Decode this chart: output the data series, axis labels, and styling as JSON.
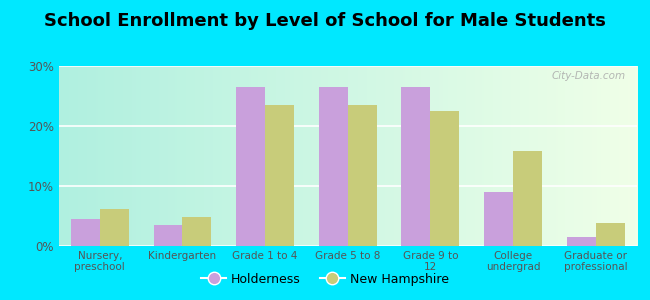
{
  "title": "School Enrollment by Level of School for Male Students",
  "categories": [
    "Nursery,\npreschool",
    "Kindergarten",
    "Grade 1 to 4",
    "Grade 5 to 8",
    "Grade 9 to\n12",
    "College\nundergrad",
    "Graduate or\nprofessional"
  ],
  "holderness": [
    4.5,
    3.5,
    26.5,
    26.5,
    26.5,
    9.0,
    1.5
  ],
  "new_hampshire": [
    6.2,
    4.8,
    23.5,
    23.5,
    22.5,
    15.8,
    3.8
  ],
  "holderness_color": "#c9a0dc",
  "new_hampshire_color": "#c8cc7a",
  "background_outer": "#00e8ff",
  "ylim": [
    0,
    30
  ],
  "yticks": [
    0,
    10,
    20,
    30
  ],
  "ytick_labels": [
    "0%",
    "10%",
    "20%",
    "30%"
  ],
  "title_fontsize": 13,
  "legend_labels": [
    "Holderness",
    "New Hampshire"
  ],
  "watermark": "City-Data.com"
}
